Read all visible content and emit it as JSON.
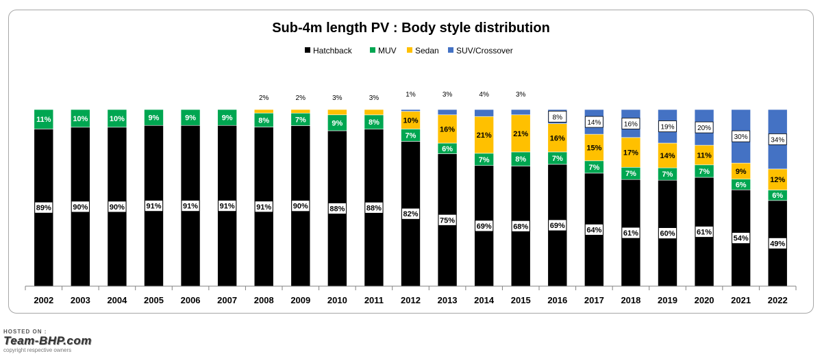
{
  "chart_data": {
    "type": "bar",
    "stacked": true,
    "percent_stacked": true,
    "title": "Sub-4m length PV : Body style distribution",
    "xlabel": "",
    "ylabel": "",
    "ylim": [
      0,
      100
    ],
    "grid": false,
    "legend_position": "top-center",
    "categories": [
      "2002",
      "2003",
      "2004",
      "2005",
      "2006",
      "2007",
      "2008",
      "2009",
      "2010",
      "2011",
      "2012",
      "2013",
      "2014",
      "2015",
      "2016",
      "2017",
      "2018",
      "2019",
      "2020",
      "2021",
      "2022"
    ],
    "series": [
      {
        "name": "Hatchback",
        "color": "#000000",
        "values": [
          89,
          90,
          90,
          91,
          91,
          91,
          91,
          90,
          88,
          88,
          82,
          75,
          69,
          68,
          69,
          64,
          61,
          60,
          61,
          54,
          49
        ]
      },
      {
        "name": "MUV",
        "color": "#00a651",
        "values": [
          11,
          10,
          10,
          9,
          9,
          9,
          8,
          7,
          9,
          8,
          7,
          6,
          7,
          8,
          7,
          7,
          7,
          7,
          7,
          6,
          6
        ]
      },
      {
        "name": "Sedan",
        "color": "#ffc000",
        "values": [
          0,
          0,
          0,
          0,
          0,
          0,
          2,
          2,
          3,
          3,
          10,
          16,
          21,
          21,
          16,
          15,
          17,
          14,
          11,
          9,
          12
        ]
      },
      {
        "name": "SUV/Crossover",
        "color": "#4472c4",
        "values": [
          0,
          0,
          0,
          0,
          0,
          0,
          0,
          0,
          0,
          0,
          1,
          3,
          4,
          3,
          8,
          14,
          16,
          19,
          20,
          30,
          34
        ]
      }
    ]
  },
  "watermark": {
    "hosted": "HOSTED ON :",
    "brand": "Team-BHP.com",
    "copyright": "copyright respective owners"
  }
}
